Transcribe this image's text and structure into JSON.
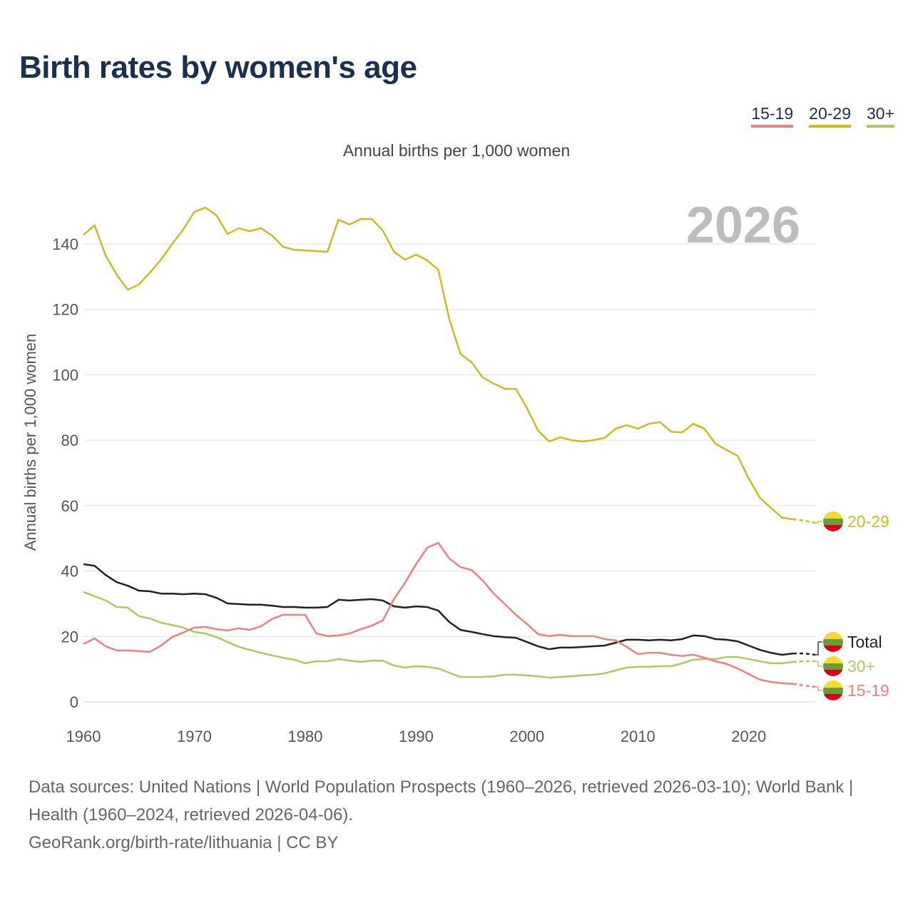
{
  "title": "Birth rates by women's age",
  "legend": [
    {
      "label": "15-19",
      "color": "#ef8080"
    },
    {
      "label": "20-29",
      "color": "#cdbb22"
    },
    {
      "label": "30+",
      "color": "#b0c862"
    }
  ],
  "year_label": "2026",
  "footer": {
    "sources": "Data sources: United Nations | World Population Prospects (1960–2026, retrieved 2026-03-10); World Bank | Health (1960–2024, retrieved 2026-04-06).",
    "credit": "GeoRank.org/birth-rate/lithuania | CC BY"
  },
  "chart_data": {
    "type": "line",
    "title": "Birth rates by women's age",
    "subtitle": "Annual births per 1,000 women",
    "xlabel": "",
    "ylabel": "Annual births per 1,000 women",
    "xlim": [
      1960,
      2026
    ],
    "ylim": [
      0,
      155
    ],
    "xticks": [
      1960,
      1970,
      1980,
      1990,
      2000,
      2010,
      2020
    ],
    "yticks": [
      0,
      20,
      40,
      60,
      80,
      100,
      120,
      140
    ],
    "grid": true,
    "legend_position": "top-right",
    "projection_from": 2024,
    "x_start": 1960,
    "series": [
      {
        "name": "20-29",
        "label": "20-29",
        "color": "#cdbb22",
        "values": [
          142.8,
          145.7,
          136.5,
          130.6,
          126.0,
          127.6,
          131.3,
          135.2,
          140.0,
          144.4,
          149.8,
          151.1,
          148.7,
          143.0,
          144.8,
          143.9,
          144.8,
          142.6,
          139.1,
          138.2,
          138.0,
          137.8,
          137.6,
          147.4,
          145.9,
          147.6,
          147.6,
          144.1,
          137.6,
          135.2,
          136.7,
          135.0,
          132.1,
          116.9,
          106.4,
          103.8,
          99.2,
          97.3,
          95.7,
          95.7,
          89.8,
          82.9,
          79.6,
          80.9,
          80.0,
          79.6,
          80.0,
          80.7,
          83.5,
          84.6,
          83.5,
          85.0,
          85.5,
          82.6,
          82.4,
          85.0,
          83.5,
          78.9,
          77.0,
          75.2,
          68.3,
          62.4,
          59.3,
          56.3,
          55.8,
          55.4,
          54.7
        ]
      },
      {
        "name": "Total",
        "label": "Total",
        "color": "#222222",
        "values": [
          42.1,
          41.6,
          38.8,
          36.6,
          35.5,
          34.0,
          33.8,
          33.1,
          33.1,
          32.9,
          33.1,
          32.9,
          31.8,
          30.1,
          29.9,
          29.7,
          29.7,
          29.4,
          29.0,
          29.0,
          28.8,
          28.8,
          29.0,
          31.2,
          31.0,
          31.2,
          31.4,
          31.0,
          29.2,
          28.8,
          29.2,
          29.0,
          27.9,
          24.4,
          22.0,
          21.4,
          20.7,
          20.1,
          19.8,
          19.6,
          18.3,
          17.0,
          16.1,
          16.6,
          16.6,
          16.8,
          17.0,
          17.2,
          18.1,
          19.0,
          19.0,
          18.8,
          19.0,
          18.8,
          19.2,
          20.3,
          20.1,
          19.2,
          19.0,
          18.5,
          17.2,
          15.9,
          15.0,
          14.4,
          14.8,
          14.8,
          14.4
        ]
      },
      {
        "name": "30+",
        "label": "30+",
        "color": "#b0c862",
        "values": [
          33.6,
          32.3,
          31.0,
          29.0,
          28.8,
          26.2,
          25.5,
          24.2,
          23.5,
          22.7,
          21.4,
          20.9,
          19.8,
          18.3,
          16.8,
          15.9,
          15.0,
          14.2,
          13.5,
          12.9,
          11.8,
          12.4,
          12.4,
          13.1,
          12.6,
          12.2,
          12.6,
          12.6,
          11.1,
          10.5,
          10.9,
          10.7,
          10.2,
          8.9,
          7.6,
          7.6,
          7.6,
          7.8,
          8.3,
          8.3,
          8.1,
          7.8,
          7.4,
          7.6,
          7.8,
          8.1,
          8.3,
          8.7,
          9.6,
          10.5,
          10.7,
          10.7,
          10.9,
          10.9,
          11.8,
          12.9,
          13.1,
          13.1,
          13.7,
          13.7,
          13.1,
          12.4,
          11.8,
          11.8,
          12.2,
          12.4,
          12.4
        ]
      },
      {
        "name": "15-19",
        "label": "15-19",
        "color": "#ef8080",
        "values": [
          17.7,
          19.4,
          17.0,
          15.7,
          15.7,
          15.5,
          15.3,
          17.2,
          19.8,
          21.2,
          22.7,
          22.9,
          22.2,
          21.8,
          22.5,
          22.0,
          23.1,
          25.3,
          26.6,
          26.6,
          26.6,
          20.9,
          20.1,
          20.3,
          20.9,
          22.2,
          23.3,
          24.9,
          31.4,
          36.4,
          42.1,
          47.1,
          48.6,
          43.8,
          41.2,
          40.3,
          37.1,
          33.1,
          29.9,
          26.6,
          23.8,
          20.7,
          20.1,
          20.5,
          20.1,
          20.1,
          20.1,
          19.2,
          18.8,
          16.8,
          14.6,
          15.0,
          15.0,
          14.4,
          14.0,
          14.4,
          13.5,
          12.4,
          11.6,
          10.2,
          8.5,
          6.8,
          6.1,
          5.7,
          5.5,
          5.0,
          4.6
        ]
      }
    ]
  }
}
